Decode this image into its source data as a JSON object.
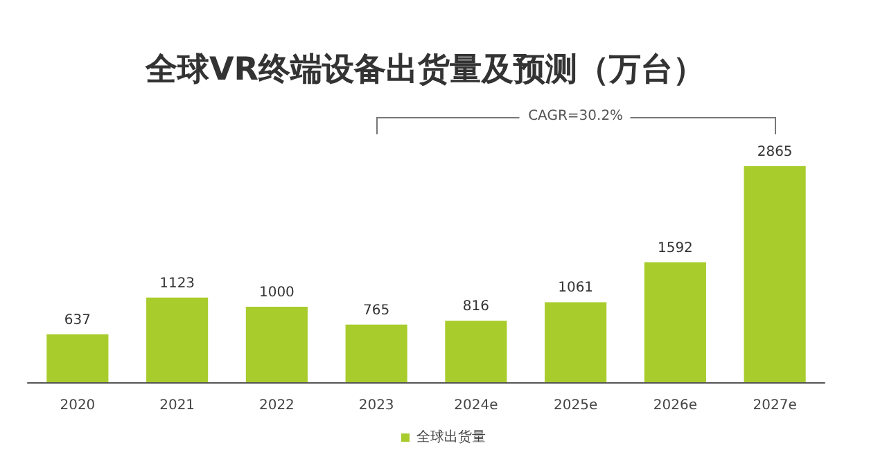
{
  "chart_data": {
    "type": "bar",
    "title": "全球VR终端设备出货量及预测（万台）",
    "categories": [
      "2020",
      "2021",
      "2022",
      "2023",
      "2024e",
      "2025e",
      "2026e",
      "2027e"
    ],
    "series": [
      {
        "name": "全球出货量",
        "color": "#a8cc2c",
        "values": [
          637,
          1123,
          1000,
          765,
          816,
          1061,
          1592,
          2865
        ]
      }
    ],
    "data_labels": true,
    "legend": "bottom",
    "annotations": [
      "CAGR=30.2%"
    ]
  }
}
